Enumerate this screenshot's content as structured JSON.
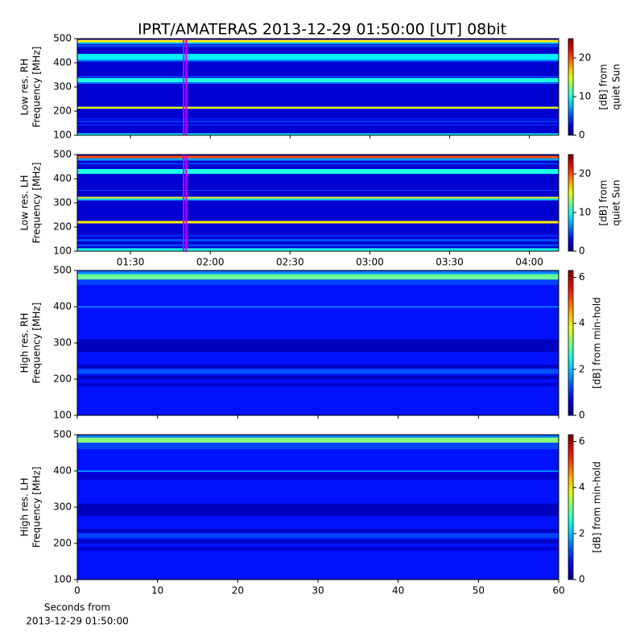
{
  "title": "IPRT/AMATERAS 2013-12-29 01:50:00 [UT]   08bit",
  "chart_data": [
    {
      "type": "heatmap",
      "ylabel": [
        "Low res. RH",
        "Frequency [MHz]"
      ],
      "xlim": [
        70,
        251
      ],
      "xticks": [
        90,
        120,
        150,
        180,
        210,
        240
      ],
      "ylim": [
        100,
        500
      ],
      "yticks": [
        100,
        200,
        300,
        400,
        500
      ],
      "clim": [
        0,
        25
      ],
      "cticks": [
        0,
        10,
        20
      ],
      "clabel": [
        "[dB] from",
        "quiet Sun"
      ],
      "background": 2,
      "markers": [
        110,
        111
      ],
      "marker_color": "#cc00ff",
      "bands": [
        {
          "range": [
            100,
            108
          ],
          "value": 9
        },
        {
          "range": [
            140,
            145
          ],
          "value": 4
        },
        {
          "range": [
            155,
            160
          ],
          "value": 5
        },
        {
          "range": [
            165,
            170
          ],
          "value": 4
        },
        {
          "range": [
            210,
            218
          ],
          "value": 15
        },
        {
          "range": [
            313,
            320
          ],
          "value": 6
        },
        {
          "range": [
            320,
            337
          ],
          "value": 10
        },
        {
          "range": [
            340,
            345
          ],
          "value": 5
        },
        {
          "range": [
            405,
            412
          ],
          "value": 6
        },
        {
          "range": [
            412,
            437
          ],
          "value": 9
        },
        {
          "range": [
            465,
            475
          ],
          "value": 5
        },
        {
          "range": [
            478,
            485
          ],
          "value": 8
        },
        {
          "range": [
            485,
            495
          ],
          "value": 16
        }
      ]
    },
    {
      "type": "heatmap",
      "ylabel": [
        "Low res. LH",
        "Frequency [MHz]"
      ],
      "xlim": [
        70,
        251
      ],
      "xticks": [
        {
          "value": 90,
          "label": "01:30"
        },
        {
          "value": 120,
          "label": "02:00"
        },
        {
          "value": 150,
          "label": "02:30"
        },
        {
          "value": 180,
          "label": "03:00"
        },
        {
          "value": 210,
          "label": "03:30"
        },
        {
          "value": 240,
          "label": "04:00"
        }
      ],
      "ylim": [
        100,
        500
      ],
      "yticks": [
        100,
        200,
        300,
        400,
        500
      ],
      "clim": [
        0,
        25
      ],
      "cticks": [
        0,
        10,
        20
      ],
      "clabel": [
        "[dB] from",
        "quiet Sun"
      ],
      "background": 2,
      "markers": [
        110,
        111
      ],
      "marker_color": "#cc00ff",
      "bands": [
        {
          "range": [
            100,
            112
          ],
          "value": 10
        },
        {
          "range": [
            120,
            128
          ],
          "value": 5
        },
        {
          "range": [
            140,
            150
          ],
          "value": 5
        },
        {
          "range": [
            160,
            168
          ],
          "value": 4
        },
        {
          "range": [
            215,
            225
          ],
          "value": 16
        },
        {
          "range": [
            310,
            318
          ],
          "value": 8
        },
        {
          "range": [
            318,
            325
          ],
          "value": 15
        },
        {
          "range": [
            350,
            353
          ],
          "value": 5
        },
        {
          "range": [
            420,
            440
          ],
          "value": 10
        },
        {
          "range": [
            460,
            465
          ],
          "value": 5
        },
        {
          "range": [
            475,
            485
          ],
          "value": 7
        },
        {
          "range": [
            485,
            495
          ],
          "value": 20
        }
      ]
    },
    {
      "type": "heatmap",
      "ylabel": [
        "High res. RH",
        "Frequency [MHz]"
      ],
      "xlim": [
        0,
        60
      ],
      "xticks": [
        0,
        10,
        20,
        30,
        40,
        50,
        60
      ],
      "ylim": [
        100,
        500
      ],
      "yticks": [
        100,
        200,
        300,
        400,
        500
      ],
      "clim": [
        0,
        6.3
      ],
      "cticks": [
        0,
        2,
        4,
        6
      ],
      "clabel": [
        "[dB] from min-hold"
      ],
      "background": 0.9,
      "bands": [
        {
          "range": [
            180,
            190
          ],
          "value": 0.5
        },
        {
          "range": [
            200,
            210
          ],
          "value": 0.4
        },
        {
          "range": [
            215,
            228
          ],
          "value": 1.3
        },
        {
          "range": [
            230,
            240
          ],
          "value": 0.4
        },
        {
          "range": [
            275,
            310
          ],
          "value": 0.4
        },
        {
          "range": [
            398,
            401
          ],
          "value": 1.8
        },
        {
          "range": [
            460,
            475
          ],
          "value": 1.2
        },
        {
          "range": [
            475,
            490
          ],
          "value": 3
        },
        {
          "range": [
            490,
            498
          ],
          "value": 1.6
        }
      ]
    },
    {
      "type": "heatmap",
      "ylabel": [
        "High res. LH",
        "Frequency [MHz]"
      ],
      "xlim": [
        0,
        60
      ],
      "xticks": [
        0,
        10,
        20,
        30,
        40,
        50,
        60
      ],
      "xlabel": [
        "Seconds from",
        "2013-12-29 01:50:00"
      ],
      "ylim": [
        100,
        500
      ],
      "yticks": [
        100,
        200,
        300,
        400,
        500
      ],
      "clim": [
        0,
        6.3
      ],
      "cticks": [
        0,
        2,
        4,
        6
      ],
      "clabel": [
        "[dB] from min-hold"
      ],
      "background": 0.9,
      "bands": [
        {
          "range": [
            180,
            190
          ],
          "value": 0.5
        },
        {
          "range": [
            200,
            210
          ],
          "value": 0.4
        },
        {
          "range": [
            215,
            228
          ],
          "value": 1.2
        },
        {
          "range": [
            230,
            240
          ],
          "value": 0.4
        },
        {
          "range": [
            275,
            310
          ],
          "value": 0.4
        },
        {
          "range": [
            375,
            395
          ],
          "value": 0.5
        },
        {
          "range": [
            398,
            401
          ],
          "value": 2
        },
        {
          "range": [
            460,
            478
          ],
          "value": 1.2
        },
        {
          "range": [
            478,
            492
          ],
          "value": 3.2
        },
        {
          "range": [
            492,
            498
          ],
          "value": 1.6
        }
      ]
    }
  ]
}
